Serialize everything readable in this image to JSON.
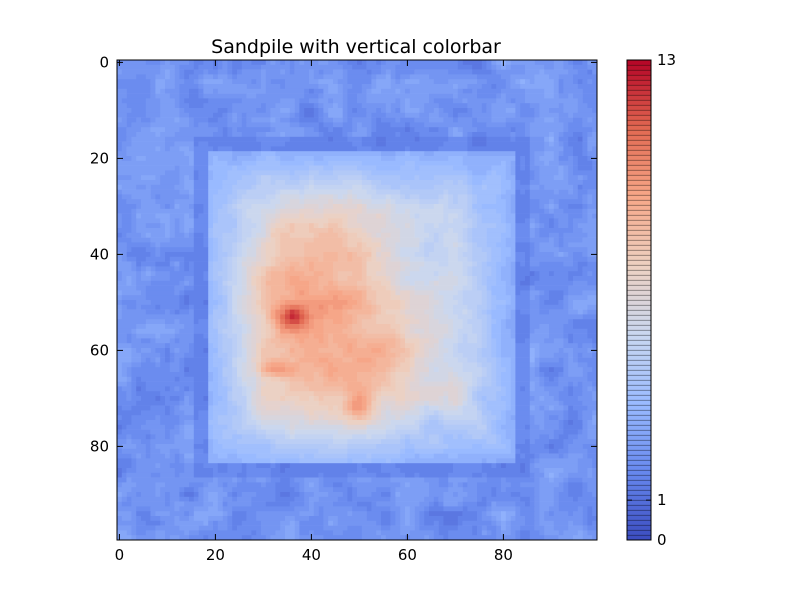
{
  "chart_data": {
    "type": "heatmap",
    "title": "Sandpile with vertical colorbar",
    "xlabel": "",
    "ylabel": "",
    "grid_size": [
      100,
      100
    ],
    "xlim": [
      0,
      99
    ],
    "ylim": [
      99,
      0
    ],
    "x_ticks": [
      "0",
      "20",
      "40",
      "60",
      "80"
    ],
    "y_ticks": [
      "0",
      "20",
      "40",
      "60",
      "80"
    ],
    "value_range": [
      0,
      13
    ],
    "colormap": "coolwarm",
    "colormap_stops": [
      "#3b4cc0",
      "#6788ee",
      "#9abbff",
      "#c9d7f0",
      "#edd1c2",
      "#f7a889",
      "#e26952",
      "#b40426"
    ],
    "colorbar": {
      "orientation": "vertical",
      "tick_labels": [
        "0",
        "1",
        "13"
      ],
      "tick_values": [
        0,
        1,
        13
      ]
    },
    "regions": [
      {
        "area": "outer border (rows/cols 0-15 and 84-99)",
        "typical_value": "1-3"
      },
      {
        "area": "inner square ring (rows/cols ~15-85)",
        "typical_value": "1-2"
      },
      {
        "area": "square plateau (rows/cols ~20-82)",
        "typical_value": "4-6"
      },
      {
        "area": "left-center mound (x 25-55, y 30-80)",
        "typical_value": "8-10"
      },
      {
        "area": "peak near (36, 53)",
        "typical_value": "13"
      },
      {
        "area": "secondary peaks near (33, 64) and (50, 72)",
        "typical_value": "11-12"
      }
    ]
  }
}
